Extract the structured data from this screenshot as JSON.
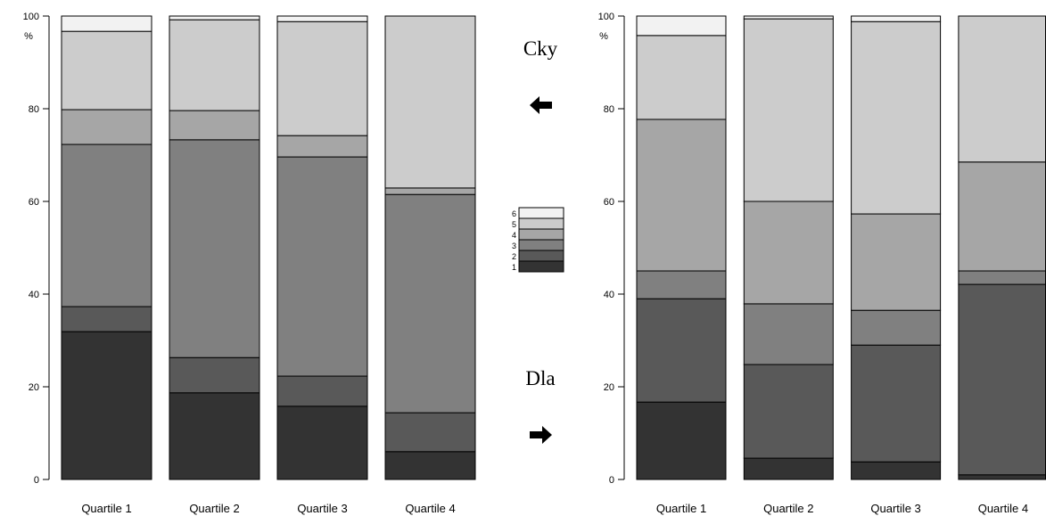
{
  "labels": {
    "top": "Cky",
    "bottom": "Dla"
  },
  "icons": {
    "top_arrow": "arrow-left-icon",
    "bottom_arrow": "arrow-right-icon"
  },
  "chart_data": [
    {
      "type": "bar",
      "stacked": true,
      "categories": [
        "Quartile 1",
        "Quartile 2",
        "Quartile 3",
        "Quartile 4"
      ],
      "ylabel": "%",
      "ylim": [
        0,
        100
      ],
      "yticks": [
        0,
        20,
        40,
        60,
        80,
        100
      ],
      "grid": false,
      "legend": "center",
      "series": [
        {
          "name": "1",
          "color": "#333333",
          "values": [
            31.9,
            18.7,
            15.8,
            6.0
          ]
        },
        {
          "name": "2",
          "color": "#595959",
          "values": [
            5.4,
            7.6,
            6.5,
            8.4
          ]
        },
        {
          "name": "3",
          "color": "#808080",
          "values": [
            35.0,
            47.0,
            47.3,
            47.1
          ]
        },
        {
          "name": "4",
          "color": "#a6a6a6",
          "values": [
            7.5,
            6.3,
            4.6,
            1.4
          ]
        },
        {
          "name": "5",
          "color": "#cccccc",
          "values": [
            16.9,
            19.6,
            24.6,
            37.1
          ]
        },
        {
          "name": "6",
          "color": "#f2f2f2",
          "values": [
            3.3,
            0.8,
            1.2,
            0.0
          ]
        }
      ]
    },
    {
      "type": "bar",
      "stacked": true,
      "categories": [
        "Quartile 1",
        "Quartile 2",
        "Quartile 3",
        "Quartile 4"
      ],
      "ylabel": "%",
      "ylim": [
        0,
        100
      ],
      "yticks": [
        0,
        20,
        40,
        60,
        80,
        100
      ],
      "grid": false,
      "legend": "center",
      "series": [
        {
          "name": "1",
          "color": "#333333",
          "values": [
            16.7,
            4.6,
            3.8,
            1.0
          ]
        },
        {
          "name": "2",
          "color": "#595959",
          "values": [
            22.3,
            20.2,
            25.2,
            41.1
          ]
        },
        {
          "name": "3",
          "color": "#808080",
          "values": [
            6.0,
            13.1,
            7.5,
            2.9
          ]
        },
        {
          "name": "4",
          "color": "#a6a6a6",
          "values": [
            32.7,
            22.1,
            20.8,
            23.5
          ]
        },
        {
          "name": "5",
          "color": "#cccccc",
          "values": [
            18.1,
            39.4,
            41.5,
            31.5
          ]
        },
        {
          "name": "6",
          "color": "#f2f2f2",
          "values": [
            4.2,
            0.6,
            1.2,
            0.0
          ]
        }
      ]
    }
  ]
}
